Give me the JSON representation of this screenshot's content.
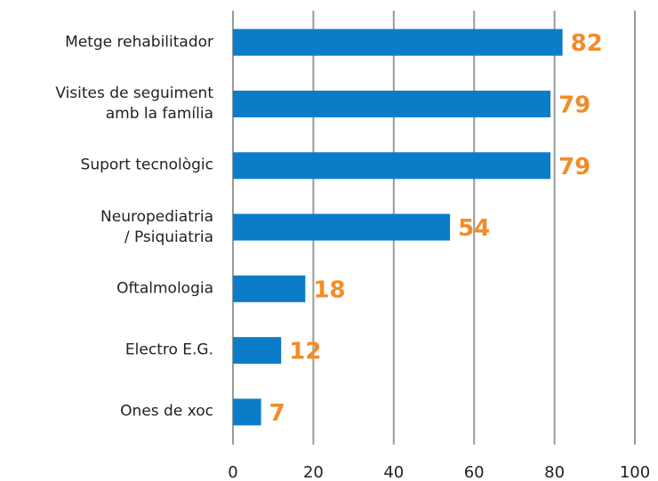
{
  "chart_data": {
    "type": "bar",
    "orientation": "horizontal",
    "categories": [
      "Metge rehabilitador",
      "Visites de seguiment\namb la família",
      "Suport tecnològic",
      "Neuropediatria\n/ Psiquiatria",
      "Oftalmologia",
      "Electro E.G.",
      "Ones de xoc"
    ],
    "values": [
      82,
      79,
      79,
      54,
      18,
      12,
      7
    ],
    "color": "#0b7dc8",
    "label_color": "#f28c28",
    "xlim": [
      0,
      100
    ],
    "xticks": [
      0,
      20,
      40,
      60,
      80,
      100
    ],
    "grid": true
  }
}
